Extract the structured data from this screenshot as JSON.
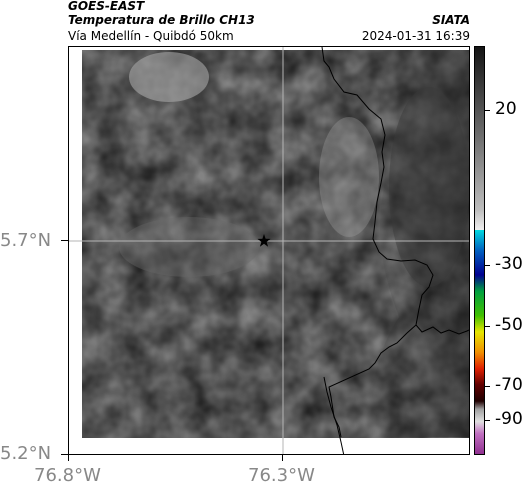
{
  "header": {
    "satellite": "GOES-EAST",
    "product": "Temperatura de Brillo CH13",
    "region": "Vía Medellín - Quibdó 50km",
    "brand": "SIATA",
    "timestamp": "2024-01-31 16:39"
  },
  "map": {
    "lat_labels": [
      "5.7°N",
      "5.2°N"
    ],
    "lon_labels": [
      "76.8°W",
      "76.3°W"
    ],
    "marker": "star-icon",
    "colors": {
      "gridline": "#b5b5b5",
      "border": "#000000"
    }
  },
  "colorbar": {
    "tick_labels": [
      "20",
      "-30",
      "-50",
      "-70",
      "-90"
    ],
    "colors": [
      "#1a1a1a",
      "#9a9a9a",
      "#e6e6e6",
      "#00c8c8",
      "#0000a0",
      "#00a000",
      "#e6e600",
      "#d04000",
      "#300000",
      "#d0d0d0",
      "#a040a0"
    ]
  }
}
